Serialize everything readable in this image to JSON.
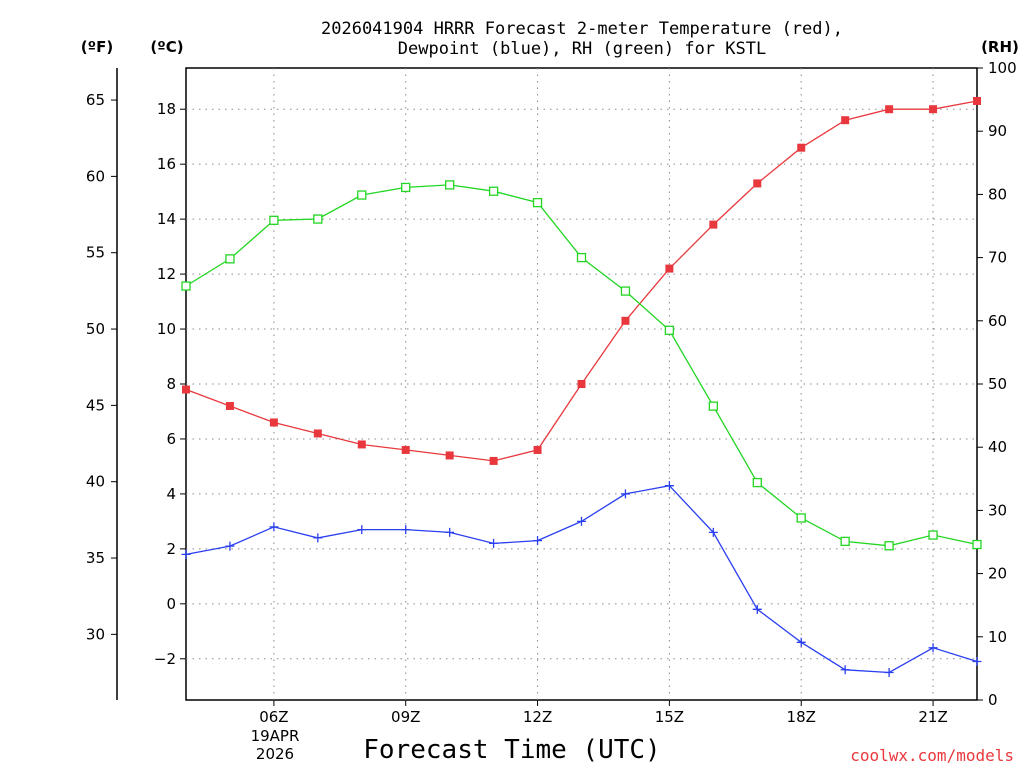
{
  "chart_data": {
    "type": "line",
    "title": "2026041904 HRRR Forecast 2-meter Temperature (red),",
    "subtitle": "Dewpoint (blue), RH (green) for KSTL",
    "xlabel": "Forecast Time (UTC)",
    "date_label": [
      "19APR",
      "2026"
    ],
    "x_hours": [
      4,
      5,
      6,
      7,
      8,
      9,
      10,
      11,
      12,
      13,
      14,
      15,
      16,
      17,
      18,
      19,
      20,
      21,
      22
    ],
    "x_range": [
      4,
      22
    ],
    "x_ticks": [
      {
        "hour": 6,
        "label": "06Z"
      },
      {
        "hour": 9,
        "label": "09Z"
      },
      {
        "hour": 12,
        "label": "12Z"
      },
      {
        "hour": 15,
        "label": "15Z"
      },
      {
        "hour": 18,
        "label": "18Z"
      },
      {
        "hour": 21,
        "label": "21Z"
      }
    ],
    "celsius_axis": {
      "unit_label": "(ºC)",
      "range": [
        -3.5,
        19.5
      ],
      "ticks": [
        -2,
        0,
        2,
        4,
        6,
        8,
        10,
        12,
        14,
        16,
        18
      ],
      "tick_labels": [
        "−2",
        "0",
        "2",
        "4",
        "6",
        "8",
        "10",
        "12",
        "14",
        "16",
        "18"
      ]
    },
    "fahrenheit_axis": {
      "unit_label": "(ºF)",
      "ticks": [
        30,
        35,
        40,
        45,
        50,
        55,
        60,
        65
      ],
      "tick_labels": [
        "30",
        "35",
        "40",
        "45",
        "50",
        "55",
        "60",
        "65"
      ]
    },
    "rh_axis": {
      "unit_label": "(RH)",
      "range": [
        0,
        100
      ],
      "ticks": [
        0,
        10,
        20,
        30,
        40,
        50,
        60,
        70,
        80,
        90,
        100
      ],
      "tick_labels": [
        "0",
        "10",
        "20",
        "30",
        "40",
        "50",
        "60",
        "70",
        "80",
        "90",
        "100"
      ]
    },
    "series": [
      {
        "name": "2-meter Temperature",
        "unit": "C",
        "color": "#e8383d",
        "marker": "filled-square",
        "values": [
          7.8,
          7.2,
          6.6,
          6.2,
          5.8,
          5.6,
          5.4,
          5.2,
          5.6,
          8.0,
          10.3,
          12.2,
          13.8,
          15.3,
          16.6,
          17.6,
          18.0,
          18.0,
          18.3
        ]
      },
      {
        "name": "Dewpoint",
        "unit": "C",
        "color": "#2a3ff0",
        "marker": "plus",
        "values": [
          1.8,
          2.1,
          2.8,
          2.4,
          2.7,
          2.7,
          2.6,
          2.2,
          2.3,
          3.0,
          4.0,
          4.3,
          2.6,
          -0.2,
          -1.4,
          -2.4,
          -2.5,
          -1.6,
          -2.1
        ]
      },
      {
        "name": "Relative Humidity",
        "unit": "%",
        "color": "#22d622",
        "marker": "open-square",
        "values": [
          65.5,
          69.8,
          75.9,
          76.1,
          79.9,
          81.1,
          81.5,
          80.5,
          78.7,
          70.0,
          64.7,
          58.5,
          46.5,
          34.4,
          28.8,
          25.1,
          24.4,
          26.1,
          24.6
        ]
      }
    ]
  },
  "credit": {
    "text": "coolwx.com/models",
    "color": "#e8383d"
  }
}
